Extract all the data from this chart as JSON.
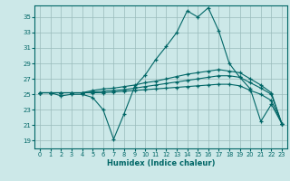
{
  "xlabel": "Humidex (Indice chaleur)",
  "bg_color": "#cce8e8",
  "grid_color": "#99bbbb",
  "line_color": "#006666",
  "xlim": [
    -0.5,
    23.5
  ],
  "ylim": [
    18.0,
    36.5
  ],
  "yticks": [
    19,
    21,
    23,
    25,
    27,
    29,
    31,
    33,
    35
  ],
  "xticks": [
    0,
    1,
    2,
    3,
    4,
    5,
    6,
    7,
    8,
    9,
    10,
    11,
    12,
    13,
    14,
    15,
    16,
    17,
    18,
    19,
    20,
    21,
    22,
    23
  ],
  "lines": [
    [
      25.2,
      25.2,
      24.8,
      25.0,
      25.0,
      24.6,
      23.0,
      19.2,
      22.5,
      26.0,
      27.5,
      29.5,
      31.2,
      33.0,
      35.8,
      35.0,
      36.2,
      33.2,
      29.0,
      27.2,
      25.7,
      21.5,
      23.7,
      21.2
    ],
    [
      25.2,
      25.2,
      25.2,
      25.2,
      25.2,
      25.5,
      25.7,
      25.8,
      26.0,
      26.2,
      26.5,
      26.7,
      27.0,
      27.3,
      27.6,
      27.8,
      28.0,
      28.2,
      28.0,
      27.8,
      27.0,
      26.2,
      25.2,
      21.2
    ],
    [
      25.2,
      25.2,
      25.2,
      25.2,
      25.2,
      25.3,
      25.4,
      25.5,
      25.6,
      25.8,
      26.0,
      26.2,
      26.4,
      26.6,
      26.8,
      27.0,
      27.2,
      27.4,
      27.4,
      27.2,
      26.5,
      25.8,
      25.0,
      21.2
    ],
    [
      25.2,
      25.2,
      25.2,
      25.2,
      25.2,
      25.2,
      25.2,
      25.3,
      25.4,
      25.5,
      25.6,
      25.7,
      25.8,
      25.9,
      26.0,
      26.1,
      26.2,
      26.3,
      26.3,
      26.1,
      25.5,
      25.0,
      24.2,
      21.2
    ]
  ]
}
